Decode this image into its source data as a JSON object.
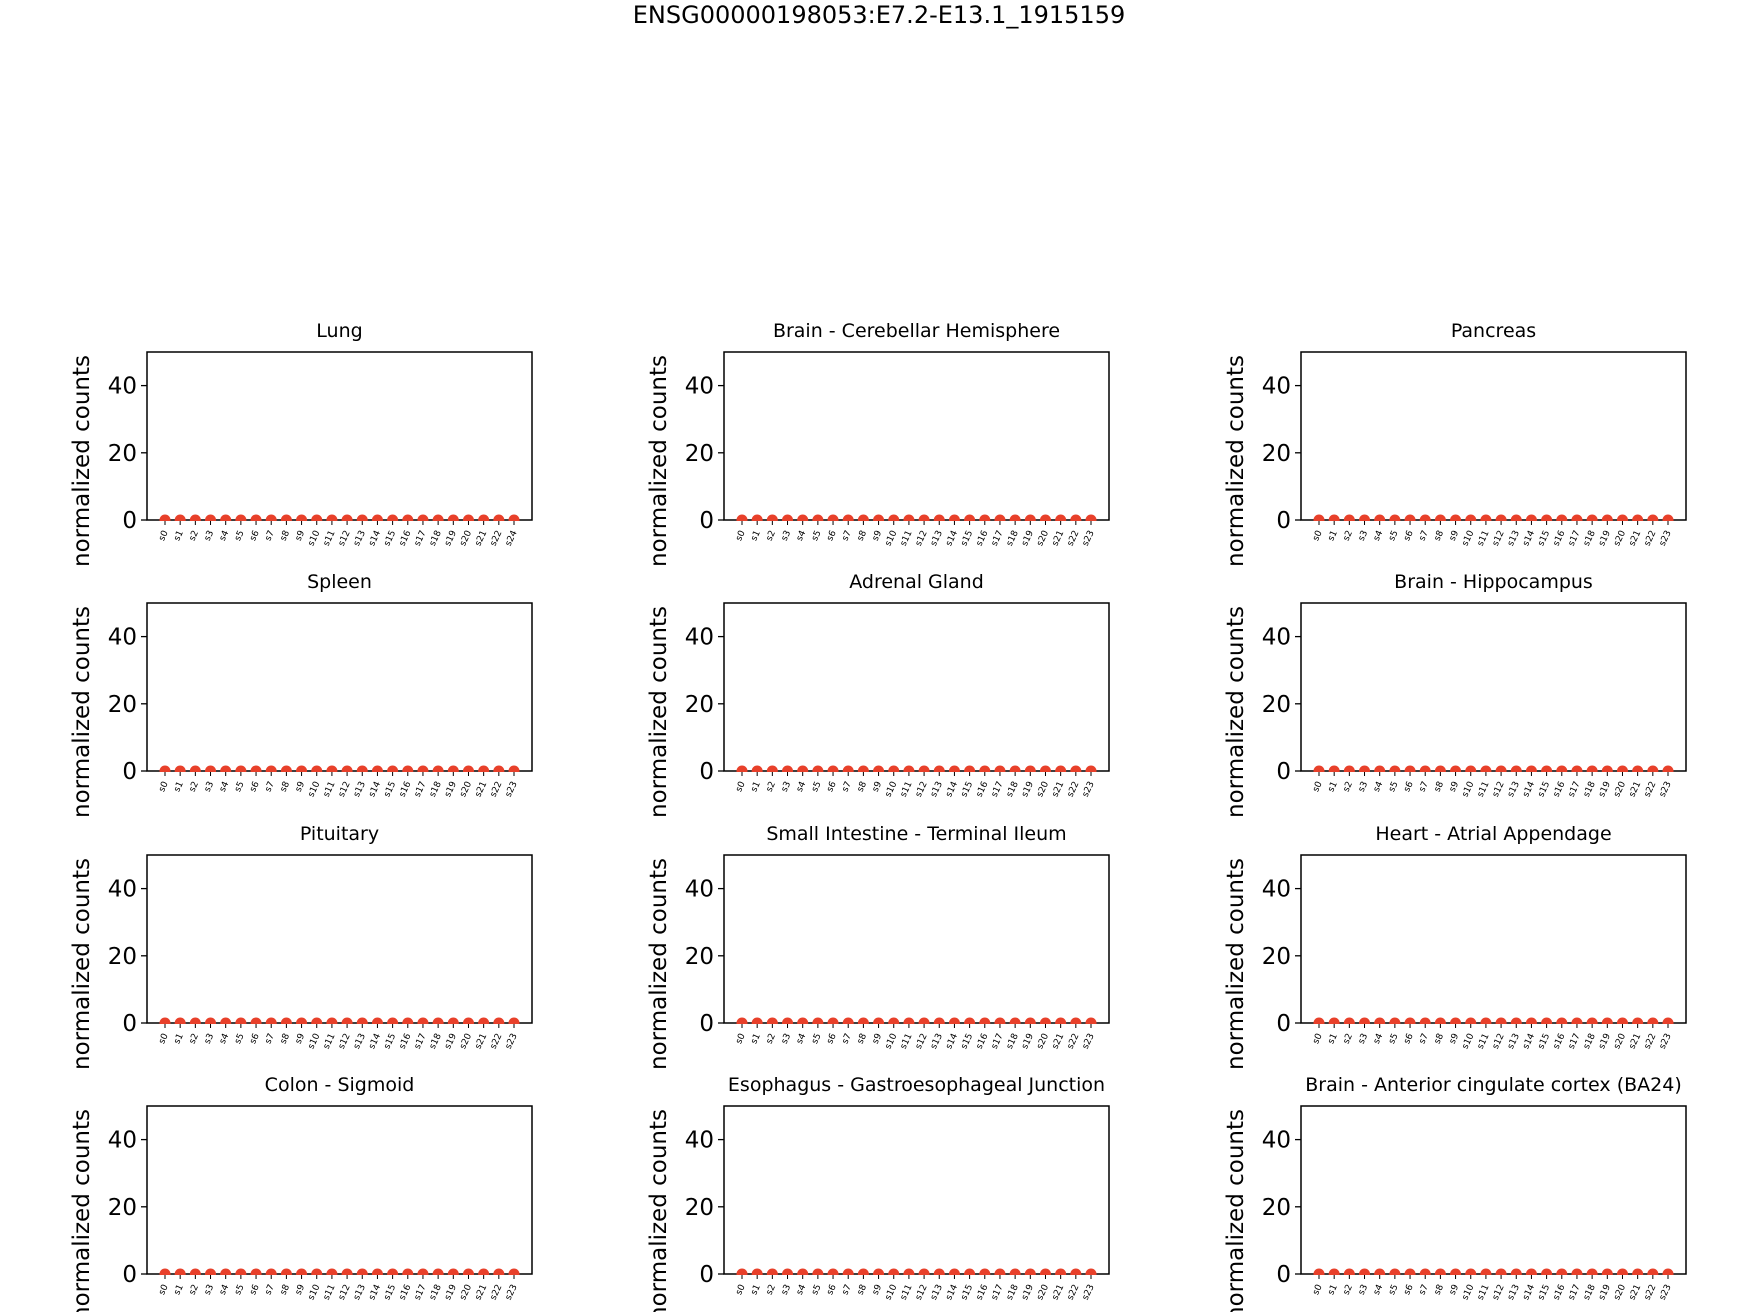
{
  "figure_title": "ENSG00000198053:E7.2-E13.1_1915159",
  "colors": {
    "point": "#e8402a",
    "axes": "#000000"
  },
  "chart_data": [
    {
      "type": "scatter",
      "title": "Lung",
      "ylabel": "normalized counts",
      "xlabel": "",
      "ylim": [
        0,
        50
      ],
      "yticks": [
        0,
        20,
        40
      ],
      "categories": [
        "s0",
        "s1",
        "s2",
        "s3",
        "s4",
        "s5",
        "s6",
        "s7",
        "s8",
        "s9",
        "s10",
        "s11",
        "s12",
        "s13",
        "s14",
        "s15",
        "s16",
        "s17",
        "s18",
        "s19",
        "s20",
        "s21",
        "s22",
        "s24"
      ],
      "values": [
        0,
        0,
        0,
        0,
        0,
        0,
        0,
        0,
        0,
        0,
        0,
        0,
        0,
        0,
        0,
        0,
        0,
        0,
        0,
        0,
        0,
        0,
        0,
        0
      ]
    },
    {
      "type": "scatter",
      "title": "Brain - Cerebellar Hemisphere",
      "ylabel": "normalized counts",
      "xlabel": "",
      "ylim": [
        0,
        50
      ],
      "yticks": [
        0,
        20,
        40
      ],
      "categories": [
        "s0",
        "s1",
        "s2",
        "s3",
        "s4",
        "s5",
        "s6",
        "s7",
        "s8",
        "s9",
        "s10",
        "s11",
        "s12",
        "s13",
        "s14",
        "s15",
        "s16",
        "s17",
        "s18",
        "s19",
        "s20",
        "s21",
        "s22",
        "s23"
      ],
      "values": [
        0,
        0,
        0,
        0,
        0,
        0,
        0,
        0,
        0,
        0,
        0,
        0,
        0,
        0,
        0,
        0,
        0,
        0,
        0,
        0,
        0,
        0,
        0,
        0
      ]
    },
    {
      "type": "scatter",
      "title": "Pancreas",
      "ylabel": "normalized counts",
      "xlabel": "",
      "ylim": [
        0,
        50
      ],
      "yticks": [
        0,
        20,
        40
      ],
      "categories": [
        "s0",
        "s1",
        "s2",
        "s3",
        "s4",
        "s5",
        "s6",
        "s7",
        "s8",
        "s9",
        "s10",
        "s11",
        "s12",
        "s13",
        "s14",
        "s15",
        "s16",
        "s17",
        "s18",
        "s19",
        "s20",
        "s21",
        "s22",
        "s23"
      ],
      "values": [
        0,
        0,
        0,
        0,
        0,
        0,
        0,
        0,
        0,
        0,
        0,
        0,
        0,
        0,
        0,
        0,
        0,
        0,
        0,
        0,
        0,
        0,
        0,
        0
      ]
    },
    {
      "type": "scatter",
      "title": "Spleen",
      "ylabel": "normalized counts",
      "xlabel": "",
      "ylim": [
        0,
        50
      ],
      "yticks": [
        0,
        20,
        40
      ],
      "categories": [
        "s0",
        "s1",
        "s2",
        "s3",
        "s4",
        "s5",
        "s6",
        "s7",
        "s8",
        "s9",
        "s10",
        "s11",
        "s12",
        "s13",
        "s14",
        "s15",
        "s16",
        "s17",
        "s18",
        "s19",
        "s20",
        "s21",
        "s22",
        "s23"
      ],
      "values": [
        0,
        0,
        0,
        0,
        0,
        0,
        0,
        0,
        0,
        0,
        0,
        0,
        0,
        0,
        0,
        0,
        0,
        0,
        0,
        0,
        0,
        0,
        0,
        0
      ]
    },
    {
      "type": "scatter",
      "title": "Adrenal Gland",
      "ylabel": "normalized counts",
      "xlabel": "",
      "ylim": [
        0,
        50
      ],
      "yticks": [
        0,
        20,
        40
      ],
      "categories": [
        "s0",
        "s1",
        "s2",
        "s3",
        "s4",
        "s5",
        "s6",
        "s7",
        "s8",
        "s9",
        "s10",
        "s11",
        "s12",
        "s13",
        "s14",
        "s15",
        "s16",
        "s17",
        "s18",
        "s19",
        "s20",
        "s21",
        "s22",
        "s23"
      ],
      "values": [
        0,
        0,
        0,
        0,
        0,
        0,
        0,
        0,
        0,
        0,
        0,
        0,
        0,
        0,
        0,
        0,
        0,
        0,
        0,
        0,
        0,
        0,
        0,
        0
      ]
    },
    {
      "type": "scatter",
      "title": "Brain - Hippocampus",
      "ylabel": "normalized counts",
      "xlabel": "",
      "ylim": [
        0,
        50
      ],
      "yticks": [
        0,
        20,
        40
      ],
      "categories": [
        "s0",
        "s1",
        "s2",
        "s3",
        "s4",
        "s5",
        "s6",
        "s7",
        "s8",
        "s9",
        "s10",
        "s11",
        "s12",
        "s13",
        "s14",
        "s15",
        "s16",
        "s17",
        "s18",
        "s19",
        "s20",
        "s21",
        "s22",
        "s23"
      ],
      "values": [
        0,
        0,
        0,
        0,
        0,
        0,
        0,
        0,
        0,
        0,
        0,
        0,
        0,
        0,
        0,
        0,
        0,
        0,
        0,
        0,
        0,
        0,
        0,
        0
      ]
    },
    {
      "type": "scatter",
      "title": "Pituitary",
      "ylabel": "normalized counts",
      "xlabel": "",
      "ylim": [
        0,
        50
      ],
      "yticks": [
        0,
        20,
        40
      ],
      "categories": [
        "s0",
        "s1",
        "s2",
        "s3",
        "s4",
        "s5",
        "s6",
        "s7",
        "s8",
        "s9",
        "s10",
        "s11",
        "s12",
        "s13",
        "s14",
        "s15",
        "s16",
        "s17",
        "s18",
        "s19",
        "s20",
        "s21",
        "s22",
        "s23"
      ],
      "values": [
        0,
        0,
        0,
        0,
        0,
        0,
        0,
        0,
        0,
        0,
        0,
        0,
        0,
        0,
        0,
        0,
        0,
        0,
        0,
        0,
        0,
        0,
        0,
        0
      ]
    },
    {
      "type": "scatter",
      "title": "Small Intestine - Terminal Ileum",
      "ylabel": "normalized counts",
      "xlabel": "",
      "ylim": [
        0,
        50
      ],
      "yticks": [
        0,
        20,
        40
      ],
      "categories": [
        "s0",
        "s1",
        "s2",
        "s3",
        "s4",
        "s5",
        "s6",
        "s7",
        "s8",
        "s9",
        "s10",
        "s11",
        "s12",
        "s13",
        "s14",
        "s15",
        "s16",
        "s17",
        "s18",
        "s19",
        "s20",
        "s21",
        "s22",
        "s23"
      ],
      "values": [
        0,
        0,
        0,
        0,
        0,
        0,
        0,
        0,
        0,
        0,
        0,
        0,
        0,
        0,
        0,
        0,
        0,
        0,
        0,
        0,
        0,
        0,
        0,
        0
      ]
    },
    {
      "type": "scatter",
      "title": "Heart - Atrial Appendage",
      "ylabel": "normalized counts",
      "xlabel": "",
      "ylim": [
        0,
        50
      ],
      "yticks": [
        0,
        20,
        40
      ],
      "categories": [
        "s0",
        "s1",
        "s2",
        "s3",
        "s4",
        "s5",
        "s6",
        "s7",
        "s8",
        "s9",
        "s10",
        "s11",
        "s12",
        "s13",
        "s14",
        "s15",
        "s16",
        "s17",
        "s18",
        "s19",
        "s20",
        "s21",
        "s22",
        "s23"
      ],
      "values": [
        0,
        0,
        0,
        0,
        0,
        0,
        0,
        0,
        0,
        0,
        0,
        0,
        0,
        0,
        0,
        0,
        0,
        0,
        0,
        0,
        0,
        0,
        0,
        0
      ]
    },
    {
      "type": "scatter",
      "title": "Colon - Sigmoid",
      "ylabel": "normalized counts",
      "xlabel": "",
      "ylim": [
        0,
        50
      ],
      "yticks": [
        0,
        20,
        40
      ],
      "categories": [
        "s0",
        "s1",
        "s2",
        "s3",
        "s4",
        "s5",
        "s6",
        "s7",
        "s8",
        "s9",
        "s10",
        "s11",
        "s12",
        "s13",
        "s14",
        "s15",
        "s16",
        "s17",
        "s18",
        "s19",
        "s20",
        "s21",
        "s22",
        "s23"
      ],
      "values": [
        0,
        0,
        0,
        0,
        0,
        0,
        0,
        0,
        0,
        0,
        0,
        0,
        0,
        0,
        0,
        0,
        0,
        0,
        0,
        0,
        0,
        0,
        0,
        0
      ]
    },
    {
      "type": "scatter",
      "title": "Esophagus - Gastroesophageal Junction",
      "ylabel": "normalized counts",
      "xlabel": "",
      "ylim": [
        0,
        50
      ],
      "yticks": [
        0,
        20,
        40
      ],
      "categories": [
        "s0",
        "s1",
        "s2",
        "s3",
        "s4",
        "s5",
        "s6",
        "s7",
        "s8",
        "s9",
        "s10",
        "s11",
        "s12",
        "s13",
        "s14",
        "s15",
        "s16",
        "s17",
        "s18",
        "s19",
        "s20",
        "s21",
        "s22",
        "s23"
      ],
      "values": [
        0,
        0,
        0,
        0,
        0,
        0,
        0,
        0,
        0,
        0,
        0,
        0,
        0,
        0,
        0,
        0,
        0,
        0,
        0,
        0,
        0,
        0,
        0,
        0
      ]
    },
    {
      "type": "scatter",
      "title": "Brain - Anterior cingulate cortex (BA24)",
      "ylabel": "normalized counts",
      "xlabel": "",
      "ylim": [
        0,
        50
      ],
      "yticks": [
        0,
        20,
        40
      ],
      "categories": [
        "s0",
        "s1",
        "s2",
        "s3",
        "s4",
        "s5",
        "s6",
        "s7",
        "s8",
        "s9",
        "s10",
        "s11",
        "s12",
        "s13",
        "s14",
        "s15",
        "s16",
        "s17",
        "s18",
        "s19",
        "s20",
        "s21",
        "s22",
        "s23"
      ],
      "values": [
        0,
        0,
        0,
        0,
        0,
        0,
        0,
        0,
        0,
        0,
        0,
        0,
        0,
        0,
        0,
        0,
        0,
        0,
        0,
        0,
        0,
        0,
        0,
        0
      ]
    }
  ]
}
